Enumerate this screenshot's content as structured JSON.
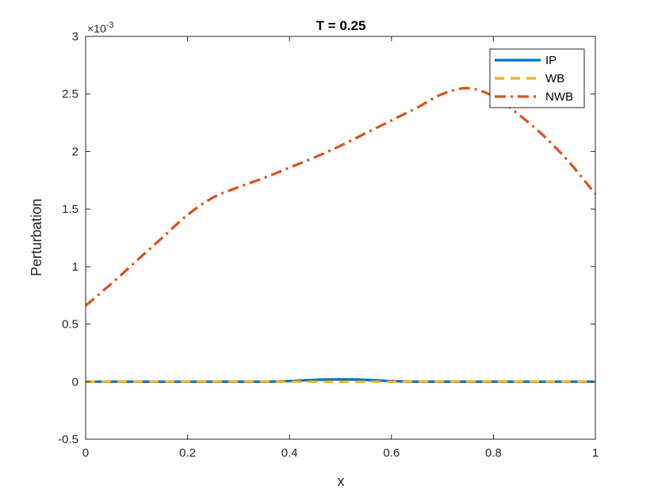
{
  "chart_data": {
    "type": "line",
    "title": "T = 0.25",
    "xlabel": "x",
    "ylabel": "Perturbation",
    "y_exponent_label": "×10",
    "y_exponent_power": "-3",
    "xlim": [
      0,
      1
    ],
    "ylim": [
      -0.5,
      3
    ],
    "x_ticks": [
      0,
      0.2,
      0.4,
      0.6,
      0.8,
      1
    ],
    "x_tick_labels": [
      "0",
      "0.2",
      "0.4",
      "0.6",
      "0.8",
      "1"
    ],
    "y_ticks": [
      -0.5,
      0,
      0.5,
      1,
      1.5,
      2,
      2.5,
      3
    ],
    "y_tick_labels": [
      "-0.5",
      "0",
      "0.5",
      "1",
      "1.5",
      "2",
      "2.5",
      "3"
    ],
    "grid": false,
    "legend_position": "top-right",
    "series": [
      {
        "name": "IP",
        "color": "#0072BD",
        "style": "solid",
        "x": [
          0,
          0.1,
          0.2,
          0.3,
          0.35,
          0.4,
          0.45,
          0.5,
          0.55,
          0.6,
          0.65,
          0.7,
          0.8,
          0.9,
          1
        ],
        "y": [
          0,
          0,
          0,
          0,
          0,
          0.005,
          0.015,
          0.02,
          0.015,
          0.005,
          0,
          0,
          0,
          0,
          0
        ]
      },
      {
        "name": "WB",
        "color": "#EDB120",
        "style": "dashed",
        "x": [
          0,
          0.2,
          0.4,
          0.6,
          0.8,
          1
        ],
        "y": [
          0,
          0,
          0,
          0,
          0,
          0
        ]
      },
      {
        "name": "NWB",
        "color": "#D95319",
        "style": "dashdot",
        "x": [
          0,
          0.05,
          0.1,
          0.15,
          0.2,
          0.25,
          0.3,
          0.35,
          0.4,
          0.45,
          0.5,
          0.55,
          0.6,
          0.65,
          0.7,
          0.75,
          0.8,
          0.85,
          0.9,
          0.95,
          1
        ],
        "y": [
          0.66,
          0.85,
          1.05,
          1.25,
          1.45,
          1.6,
          1.69,
          1.77,
          1.86,
          1.95,
          2.05,
          2.16,
          2.27,
          2.38,
          2.5,
          2.55,
          2.48,
          2.32,
          2.13,
          1.9,
          1.63
        ]
      }
    ]
  }
}
